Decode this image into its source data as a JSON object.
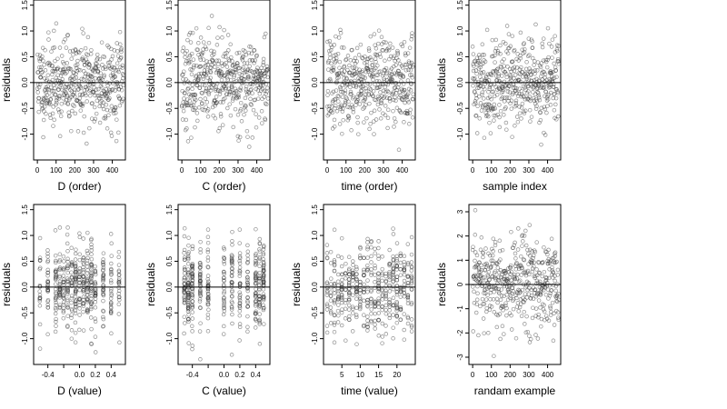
{
  "chart_data": [
    {
      "type": "scatter",
      "xlabel": "D (order)",
      "ylabel": "residuals",
      "xlim": [
        -20,
        470
      ],
      "ylim": [
        -1.5,
        1.6
      ],
      "xticks": [
        0,
        100,
        200,
        300,
        400
      ],
      "xtick_labels": [
        "0",
        "100",
        "200",
        "300",
        "400"
      ],
      "yticks": [
        -1.0,
        -0.5,
        0.0,
        0.5,
        1.0,
        1.5
      ],
      "ytick_labels": [
        "-1.0",
        "-0.5",
        "0.0",
        "0.5",
        "1.0",
        "1.5"
      ],
      "hline": 0,
      "x": [],
      "y": [],
      "sample": {
        "kind": "index",
        "n": 470,
        "lo": 0,
        "hi": 460,
        "seed": 11,
        "sd": 0.42,
        "clip": [
          -1.4,
          1.55
        ]
      }
    },
    {
      "type": "scatter",
      "xlabel": "C (order)",
      "ylabel": "residuals",
      "xlim": [
        -20,
        470
      ],
      "ylim": [
        -1.5,
        1.6
      ],
      "xticks": [
        0,
        100,
        200,
        300,
        400
      ],
      "xtick_labels": [
        "0",
        "100",
        "200",
        "300",
        "400"
      ],
      "yticks": [
        -1.0,
        -0.5,
        0.0,
        0.5,
        1.0,
        1.5
      ],
      "ytick_labels": [
        "-1.0",
        "-0.5",
        "0.0",
        "0.5",
        "1.0",
        "1.5"
      ],
      "hline": 0,
      "x": [],
      "y": [],
      "sample": {
        "kind": "index",
        "n": 470,
        "lo": 0,
        "hi": 460,
        "seed": 23,
        "sd": 0.42,
        "clip": [
          -1.4,
          1.55
        ]
      }
    },
    {
      "type": "scatter",
      "xlabel": "time (order)",
      "ylabel": "residuals",
      "xlim": [
        -20,
        470
      ],
      "ylim": [
        -1.5,
        1.6
      ],
      "xticks": [
        0,
        100,
        200,
        300,
        400
      ],
      "xtick_labels": [
        "0",
        "100",
        "200",
        "300",
        "400"
      ],
      "yticks": [
        -1.0,
        -0.5,
        0.0,
        0.5,
        1.0,
        1.5
      ],
      "ytick_labels": [
        "-1.0",
        "-0.5",
        "0.0",
        "0.5",
        "1.0",
        "1.5"
      ],
      "hline": 0,
      "x": [],
      "y": [],
      "sample": {
        "kind": "index",
        "n": 470,
        "lo": 0,
        "hi": 460,
        "seed": 37,
        "sd": 0.42,
        "clip": [
          -1.4,
          1.55
        ]
      }
    },
    {
      "type": "scatter",
      "xlabel": "sample index",
      "ylabel": "residuals",
      "xlim": [
        -20,
        470
      ],
      "ylim": [
        -1.5,
        1.6
      ],
      "xticks": [
        0,
        100,
        200,
        300,
        400
      ],
      "xtick_labels": [
        "0",
        "100",
        "200",
        "300",
        "400"
      ],
      "yticks": [
        -1.0,
        -0.5,
        0.0,
        0.5,
        1.0,
        1.5
      ],
      "ytick_labels": [
        "-1.0",
        "-0.5",
        "0.0",
        "0.5",
        "1.0",
        "1.5"
      ],
      "hline": 0,
      "x": [],
      "y": [],
      "sample": {
        "kind": "index",
        "n": 470,
        "lo": 0,
        "hi": 460,
        "seed": 41,
        "sd": 0.42,
        "clip": [
          -1.4,
          1.55
        ]
      }
    },
    {
      "type": "scatter",
      "xlabel": "D (value)",
      "ylabel": "residuals",
      "xlim": [
        -0.58,
        0.58
      ],
      "ylim": [
        -1.5,
        1.6
      ],
      "xticks": [
        -0.4,
        -0.2,
        0.0,
        0.2,
        0.4
      ],
      "xtick_labels": [
        "-0.4",
        "",
        "0.0",
        "0.2",
        "0.4"
      ],
      "yticks": [
        -1.0,
        -0.5,
        0.0,
        0.5,
        1.0,
        1.5
      ],
      "ytick_labels": [
        "-1.0",
        "-0.5",
        "0.0",
        "0.5",
        "1.0",
        "1.5"
      ],
      "hline": 0,
      "x": [],
      "y": [],
      "sample": {
        "kind": "levels",
        "n": 470,
        "levels": [
          -0.5,
          -0.4,
          -0.3,
          -0.25,
          -0.2,
          -0.15,
          -0.1,
          -0.05,
          0.0,
          0.05,
          0.1,
          0.15,
          0.2,
          0.3,
          0.4,
          0.5
        ],
        "jitter": 0.004,
        "seed": 53,
        "sd": 0.42,
        "clip": [
          -1.4,
          1.55
        ]
      }
    },
    {
      "type": "scatter",
      "xlabel": "C (value)",
      "ylabel": "residuals",
      "xlim": [
        -0.58,
        0.58
      ],
      "ylim": [
        -1.5,
        1.6
      ],
      "xticks": [
        -0.4,
        -0.2,
        0.0,
        0.2,
        0.4
      ],
      "xtick_labels": [
        "-0.4",
        "",
        "0.0",
        "0.2",
        "0.4"
      ],
      "yticks": [
        -1.0,
        -0.5,
        0.0,
        0.5,
        1.0,
        1.5
      ],
      "ytick_labels": [
        "-1.0",
        "-0.5",
        "0.0",
        "0.5",
        "1.0",
        "1.5"
      ],
      "hline": 0,
      "x": [],
      "y": [],
      "sample": {
        "kind": "levels",
        "n": 470,
        "levels": [
          -0.5,
          -0.45,
          -0.4,
          -0.3,
          -0.2,
          0.0,
          0.1,
          0.2,
          0.3,
          0.4,
          0.45,
          0.5
        ],
        "jitter": 0.004,
        "seed": 67,
        "sd": 0.42,
        "clip": [
          -1.4,
          1.55
        ]
      }
    },
    {
      "type": "scatter",
      "xlabel": "time (value)",
      "ylabel": "residuals",
      "xlim": [
        0,
        25
      ],
      "ylim": [
        -1.5,
        1.6
      ],
      "xticks": [
        5,
        10,
        15,
        20
      ],
      "xtick_labels": [
        "5",
        "10",
        "15",
        "20"
      ],
      "yticks": [
        -1.0,
        -0.5,
        0.0,
        0.5,
        1.0,
        1.5
      ],
      "ytick_labels": [
        "-1.0",
        "-0.5",
        "0.0",
        "0.5",
        "1.0",
        "1.5"
      ],
      "hline": 0,
      "x": [],
      "y": [],
      "sample": {
        "kind": "levels",
        "n": 470,
        "levels": [
          1,
          2,
          3,
          4,
          5,
          6,
          7,
          8,
          9,
          10,
          11,
          12,
          13,
          14,
          15,
          16,
          17,
          18,
          19,
          20,
          21,
          22,
          23,
          24
        ],
        "jitter": 0.05,
        "seed": 79,
        "sd": 0.42,
        "clip": [
          -1.4,
          1.55
        ]
      }
    },
    {
      "type": "scatter",
      "xlabel": "randam example",
      "ylabel": "residuals",
      "xlim": [
        -20,
        470
      ],
      "ylim": [
        -3.3,
        3.3
      ],
      "xticks": [
        0,
        100,
        200,
        300,
        400
      ],
      "xtick_labels": [
        "0",
        "100",
        "200",
        "300",
        "400"
      ],
      "yticks": [
        -3,
        -2,
        -1,
        0,
        1,
        2,
        3
      ],
      "ytick_labels": [
        "-3",
        "-2",
        "-1",
        "0",
        "1",
        "2",
        "3"
      ],
      "hline": 0,
      "x": [],
      "y": [],
      "sample": {
        "kind": "index",
        "n": 470,
        "lo": 0,
        "hi": 460,
        "seed": 97,
        "sd": 1.0,
        "clip": [
          -3.2,
          3.2
        ]
      }
    }
  ]
}
